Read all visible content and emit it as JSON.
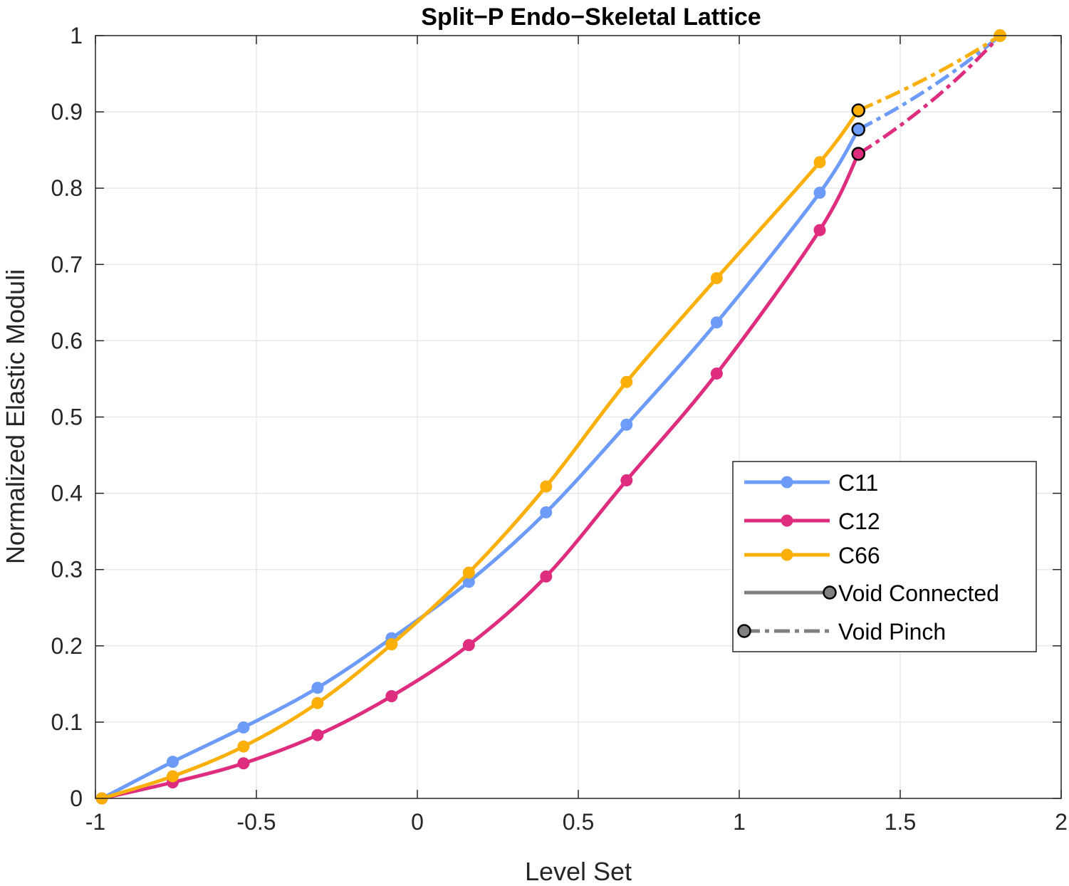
{
  "chart_data": {
    "type": "line",
    "title": "Split−P Endo−Skeletal Lattice",
    "xlabel": "Level Set",
    "ylabel": "Normalized Elastic Moduli",
    "xlim": [
      -1,
      2
    ],
    "ylim": [
      0,
      1
    ],
    "xticks": [
      -1,
      -0.5,
      0,
      0.5,
      1,
      1.5,
      2
    ],
    "xtick_labels": [
      "-1",
      "-0.5",
      "0",
      "0.5",
      "1",
      "1.5",
      "2"
    ],
    "yticks": [
      0,
      0.1,
      0.2,
      0.3,
      0.4,
      0.5,
      0.6,
      0.7,
      0.8,
      0.9,
      1
    ],
    "ytick_labels": [
      "0",
      "0.1",
      "0.2",
      "0.3",
      "0.4",
      "0.5",
      "0.6",
      "0.7",
      "0.8",
      "0.9",
      "1"
    ],
    "grid": true,
    "legend_position": "right",
    "series": [
      {
        "name": "C11",
        "color": "#6C9BF9",
        "solid": {
          "x": [
            -0.98,
            -0.76,
            -0.54,
            -0.31,
            -0.08,
            0.16,
            0.4,
            0.65,
            0.93,
            1.25,
            1.37
          ],
          "y": [
            0.0,
            0.048,
            0.093,
            0.145,
            0.21,
            0.284,
            0.375,
            0.49,
            0.624,
            0.794,
            0.877
          ]
        },
        "dashed": {
          "x": [
            1.37,
            1.81
          ],
          "y": [
            0.877,
            1.0
          ]
        }
      },
      {
        "name": "C12",
        "color": "#DE2D7F",
        "solid": {
          "x": [
            -0.98,
            -0.76,
            -0.54,
            -0.31,
            -0.08,
            0.16,
            0.4,
            0.65,
            0.93,
            1.25,
            1.37
          ],
          "y": [
            0.0,
            0.021,
            0.046,
            0.083,
            0.134,
            0.201,
            0.291,
            0.417,
            0.557,
            0.745,
            0.845
          ]
        },
        "dashed": {
          "x": [
            1.37,
            1.81
          ],
          "y": [
            0.845,
            1.0
          ]
        }
      },
      {
        "name": "C66",
        "color": "#FBAF09",
        "solid": {
          "x": [
            -0.98,
            -0.76,
            -0.54,
            -0.31,
            -0.08,
            0.16,
            0.4,
            0.65,
            0.93,
            1.25,
            1.37
          ],
          "y": [
            0.0,
            0.029,
            0.068,
            0.125,
            0.202,
            0.296,
            0.409,
            0.546,
            0.682,
            0.834,
            0.902
          ]
        },
        "dashed": {
          "x": [
            1.37,
            1.81
          ],
          "y": [
            0.902,
            1.0
          ]
        }
      }
    ],
    "legend": {
      "entries": [
        "C11",
        "C12",
        "C66",
        "Void Connected",
        "Void Pinch"
      ],
      "style_color": "#808080"
    }
  }
}
